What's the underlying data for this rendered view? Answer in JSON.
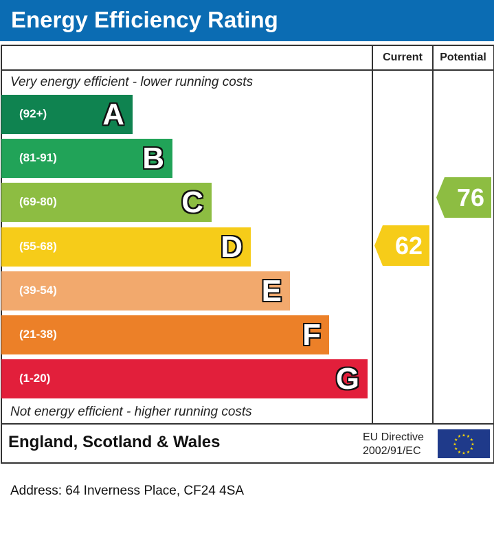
{
  "title": "Energy Efficiency Rating",
  "columns": {
    "current": "Current",
    "potential": "Potential"
  },
  "top_note": "Very energy efficient - lower running costs",
  "bottom_note": "Not energy efficient - higher running costs",
  "region": "England, Scotland & Wales",
  "eu_directive": {
    "line1": "EU Directive",
    "line2": "2002/91/EC"
  },
  "address": "Address: 64 Inverness Place, CF24 4SA",
  "chart_data": {
    "type": "bar",
    "bands": [
      {
        "letter": "A",
        "range": "(92+)",
        "color": "#0f8350"
      },
      {
        "letter": "B",
        "range": "(81-91)",
        "color": "#21a358"
      },
      {
        "letter": "C",
        "range": "(69-80)",
        "color": "#8dbd42"
      },
      {
        "letter": "D",
        "range": "(55-68)",
        "color": "#f6cc19"
      },
      {
        "letter": "E",
        "range": "(39-54)",
        "color": "#f2a96d"
      },
      {
        "letter": "F",
        "range": "(21-38)",
        "color": "#ec8028"
      },
      {
        "letter": "G",
        "range": "(1-20)",
        "color": "#e21f3b"
      }
    ],
    "current": {
      "value": 62,
      "band": "D",
      "color": "#f6cc19"
    },
    "potential": {
      "value": 76,
      "band": "C",
      "color": "#8dbd42"
    }
  }
}
